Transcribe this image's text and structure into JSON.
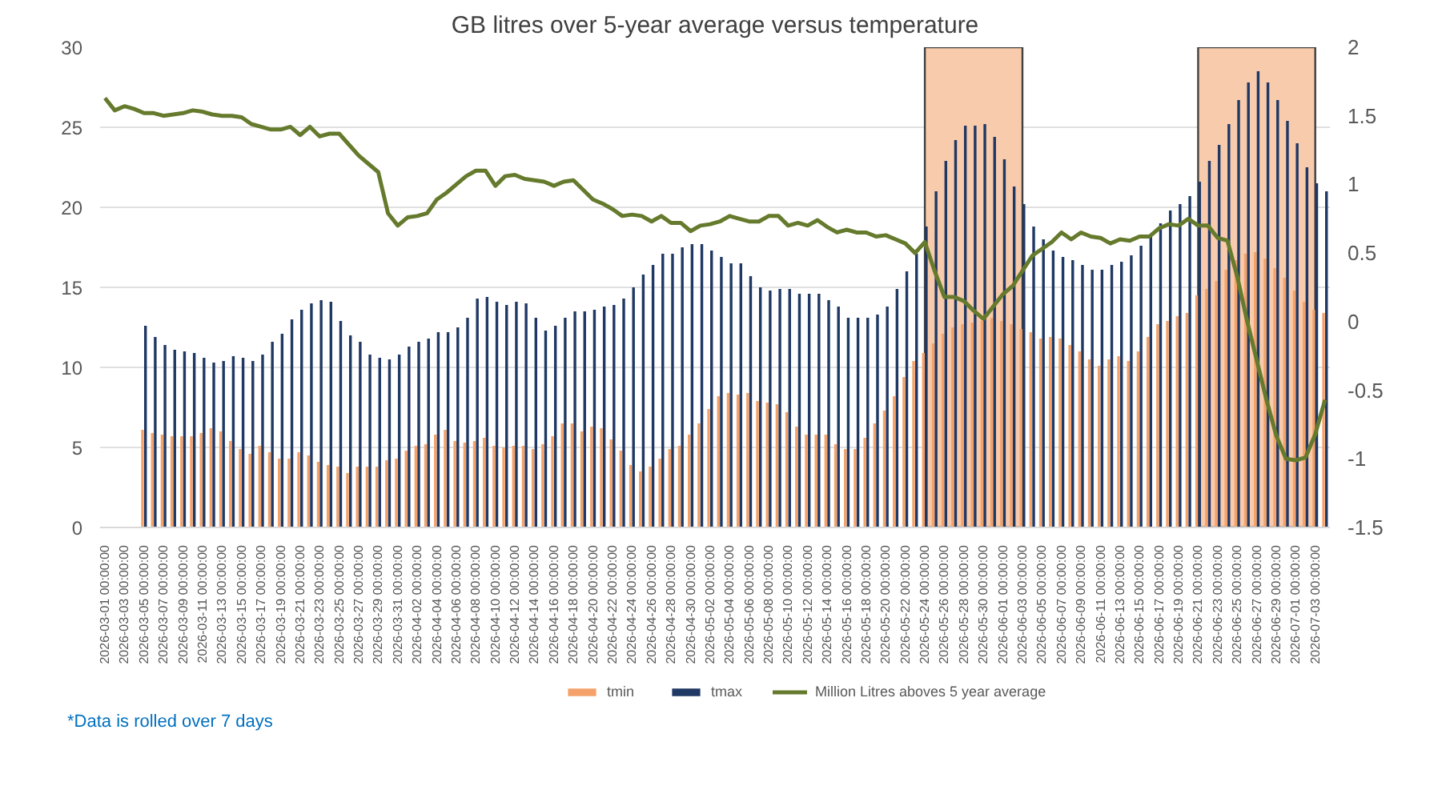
{
  "chart_data": {
    "type": "bar",
    "title": "GB litres over 5-year average versus temperature",
    "categories": [
      "2026-03-01 00:00:00",
      null,
      "2026-03-03 00:00:00",
      null,
      "2026-03-05 00:00:00",
      null,
      "2026-03-07 00:00:00",
      null,
      "2026-03-09 00:00:00",
      null,
      "2026-03-11 00:00:00",
      null,
      "2026-03-13 00:00:00",
      null,
      "2026-03-15 00:00:00",
      null,
      "2026-03-17 00:00:00",
      null,
      "2026-03-19 00:00:00",
      null,
      "2026-03-21 00:00:00",
      null,
      "2026-03-23 00:00:00",
      null,
      "2026-03-25 00:00:00",
      null,
      "2026-03-27 00:00:00",
      null,
      "2026-03-29 00:00:00",
      null,
      "2026-03-31 00:00:00",
      null,
      "2026-04-02 00:00:00",
      null,
      "2026-04-04 00:00:00",
      null,
      "2026-04-06 00:00:00",
      null,
      "2026-04-08 00:00:00",
      null,
      "2026-04-10 00:00:00",
      null,
      "2026-04-12 00:00:00",
      null,
      "2026-04-14 00:00:00",
      null,
      "2026-04-16 00:00:00",
      null,
      "2026-04-18 00:00:00",
      null,
      "2026-04-20 00:00:00",
      null,
      "2026-04-22 00:00:00",
      null,
      "2026-04-24 00:00:00",
      null,
      "2026-04-26 00:00:00",
      null,
      "2026-04-28 00:00:00",
      null,
      "2026-04-30 00:00:00",
      null,
      "2026-05-02 00:00:00",
      null,
      "2026-05-04 00:00:00",
      null,
      "2026-05-06 00:00:00",
      null,
      "2026-05-08 00:00:00",
      null,
      "2026-05-10 00:00:00",
      null,
      "2026-05-12 00:00:00",
      null,
      "2026-05-14 00:00:00",
      null,
      "2026-05-16 00:00:00",
      null,
      "2026-05-18 00:00:00",
      null,
      "2026-05-20 00:00:00",
      null,
      "2026-05-22 00:00:00",
      null,
      "2026-05-24 00:00:00",
      null,
      "2026-05-26 00:00:00",
      null,
      "2026-05-28 00:00:00",
      null,
      "2026-05-30 00:00:00",
      null,
      "2026-06-01 00:00:00",
      null,
      "2026-06-03 00:00:00",
      null,
      "2026-06-05 00:00:00",
      null,
      "2026-06-07 00:00:00",
      null,
      "2026-06-09 00:00:00",
      null,
      "2026-06-11 00:00:00",
      null,
      "2026-06-13 00:00:00",
      null,
      "2026-06-15 00:00:00",
      null,
      "2026-06-17 00:00:00",
      null,
      "2026-06-19 00:00:00",
      null,
      "2026-06-21 00:00:00",
      null,
      "2026-06-23 00:00:00",
      null,
      "2026-06-25 00:00:00",
      null,
      "2026-06-27 00:00:00",
      null,
      "2026-06-29 00:00:00",
      null,
      "2026-07-01 00:00:00",
      null,
      "2026-07-03 00:00:00",
      null
    ],
    "series": [
      {
        "name": "tmin",
        "color": "#f4a26a",
        "values": [
          null,
          null,
          null,
          null,
          6.1,
          5.9,
          5.8,
          5.7,
          5.7,
          5.7,
          5.9,
          6.2,
          6.0,
          5.4,
          4.9,
          4.6,
          5.1,
          4.7,
          4.3,
          4.3,
          4.7,
          4.5,
          4.1,
          3.9,
          3.8,
          3.4,
          3.8,
          3.8,
          3.8,
          4.2,
          4.3,
          4.8,
          5.1,
          5.2,
          5.8,
          6.1,
          5.4,
          5.3,
          5.4,
          5.6,
          5.1,
          5.0,
          5.1,
          5.1,
          4.9,
          5.2,
          5.7,
          6.5,
          6.5,
          6.0,
          6.3,
          6.2,
          5.5,
          4.8,
          3.9,
          3.5,
          3.8,
          4.3,
          4.9,
          5.1,
          5.8,
          6.5,
          7.4,
          8.2,
          8.4,
          8.3,
          8.4,
          7.9,
          7.8,
          7.7,
          7.2,
          6.3,
          5.8,
          5.8,
          5.8,
          5.2,
          4.9,
          4.9,
          5.6,
          6.5,
          7.3,
          8.2,
          9.4,
          10.4,
          10.9,
          11.5,
          12.1,
          12.5,
          12.7,
          12.8,
          12.9,
          13.1,
          12.9,
          12.7,
          12.4,
          12.2,
          11.8,
          11.9,
          11.8,
          11.4,
          11.0,
          10.5,
          10.1,
          10.5,
          10.7,
          10.4,
          11.0,
          11.9,
          12.7,
          12.9,
          13.2,
          13.4,
          14.5,
          14.9,
          15.4,
          16.1,
          16.7,
          17.1,
          17.2,
          16.8,
          16.2,
          15.6,
          14.8,
          14.1,
          13.6,
          13.4
        ]
      },
      {
        "name": "tmax",
        "color": "#1f3864",
        "values": [
          null,
          null,
          null,
          null,
          12.6,
          11.9,
          11.4,
          11.1,
          11.0,
          10.9,
          10.6,
          10.3,
          10.4,
          10.7,
          10.6,
          10.4,
          10.8,
          11.6,
          12.1,
          13.0,
          13.6,
          14.0,
          14.2,
          14.1,
          12.9,
          12.0,
          11.6,
          10.8,
          10.6,
          10.5,
          10.8,
          11.3,
          11.6,
          11.8,
          12.2,
          12.2,
          12.5,
          13.1,
          14.3,
          14.4,
          14.1,
          13.9,
          14.1,
          14.0,
          13.1,
          12.3,
          12.6,
          13.1,
          13.5,
          13.5,
          13.6,
          13.8,
          13.9,
          14.3,
          15.0,
          15.8,
          16.4,
          17.1,
          17.1,
          17.5,
          17.7,
          17.7,
          17.3,
          16.9,
          16.5,
          16.5,
          15.7,
          15.0,
          14.8,
          14.9,
          14.9,
          14.6,
          14.6,
          14.6,
          14.2,
          13.8,
          13.1,
          13.1,
          13.1,
          13.3,
          13.8,
          14.9,
          16.0,
          17.1,
          18.8,
          21.0,
          22.9,
          24.2,
          25.1,
          25.1,
          25.2,
          24.4,
          23.0,
          21.3,
          20.2,
          18.8,
          18.0,
          17.3,
          16.9,
          16.7,
          16.4,
          16.1,
          16.1,
          16.4,
          16.6,
          17.0,
          17.6,
          18.2,
          19.0,
          19.8,
          20.2,
          20.7,
          21.6,
          22.9,
          23.9,
          25.2,
          26.7,
          27.8,
          28.5,
          27.8,
          26.7,
          25.4,
          24.0,
          22.5,
          21.5,
          21.0
        ]
      },
      {
        "name": "Million Litres aboves 5 year average",
        "type": "line",
        "axis": "y2",
        "color": "#657a2c",
        "values": [
          1.63,
          1.54,
          1.57,
          1.55,
          1.52,
          1.52,
          1.5,
          1.51,
          1.52,
          1.54,
          1.53,
          1.51,
          1.5,
          1.5,
          1.49,
          1.44,
          1.42,
          1.4,
          1.4,
          1.42,
          1.36,
          1.42,
          1.35,
          1.37,
          1.37,
          1.29,
          1.21,
          1.15,
          1.09,
          0.79,
          0.7,
          0.76,
          0.77,
          0.79,
          0.89,
          0.94,
          1.0,
          1.06,
          1.1,
          1.1,
          0.99,
          1.06,
          1.07,
          1.04,
          1.03,
          1.02,
          0.99,
          1.02,
          1.03,
          0.96,
          0.89,
          0.86,
          0.82,
          0.77,
          0.78,
          0.77,
          0.73,
          0.77,
          0.72,
          0.72,
          0.66,
          0.7,
          0.71,
          0.73,
          0.77,
          0.75,
          0.73,
          0.73,
          0.77,
          0.77,
          0.7,
          0.72,
          0.7,
          0.74,
          0.69,
          0.65,
          0.67,
          0.65,
          0.65,
          0.62,
          0.63,
          0.6,
          0.57,
          0.5,
          0.58,
          0.37,
          0.18,
          0.18,
          0.15,
          0.08,
          0.02,
          0.11,
          0.2,
          0.26,
          0.37,
          0.48,
          0.53,
          0.58,
          0.65,
          0.6,
          0.65,
          0.62,
          0.61,
          0.57,
          0.6,
          0.59,
          0.62,
          0.62,
          0.68,
          0.71,
          0.7,
          0.75,
          0.7,
          0.7,
          0.61,
          0.59,
          0.33,
          0.01,
          -0.28,
          -0.57,
          -0.83,
          -1.0,
          -1.01,
          -0.99,
          -0.82,
          -0.57
        ]
      }
    ],
    "ylim": [
      0,
      30
    ],
    "yticks": [
      0,
      5,
      10,
      15,
      20,
      25,
      30
    ],
    "y2lim": [
      -1.5,
      2
    ],
    "y2ticks": [
      -1.5,
      -1,
      -0.5,
      0,
      0.5,
      1,
      1.5,
      2
    ],
    "bands": [
      {
        "axis": "x",
        "from": "2026-05-24 00:00:00",
        "to": "2026-06-03 00:00:00",
        "color": "#f8cbad"
      },
      {
        "axis": "x",
        "from": "2026-06-21 00:00:00",
        "to": "2026-07-03 00:00:00",
        "color": "#f8cbad"
      }
    ],
    "grid": "y",
    "legend": "bottom",
    "annotations": [
      "*Data is rolled over 7 days"
    ]
  }
}
